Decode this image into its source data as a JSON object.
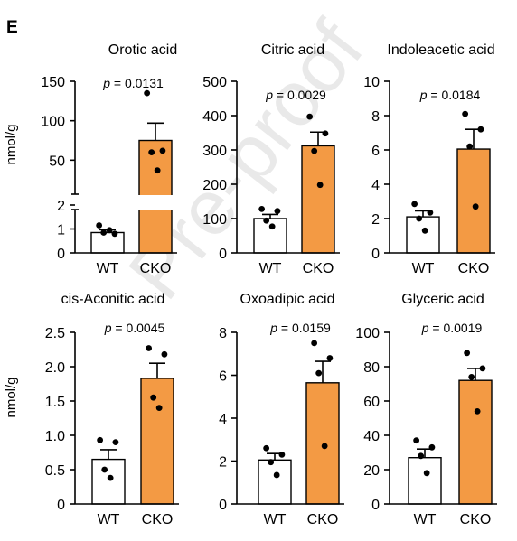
{
  "panel_label": "E",
  "watermark": "Pre-proof",
  "colors": {
    "wt_fill": "#ffffff",
    "cko_fill": "#f39a44",
    "stroke": "#000000",
    "watermark": "#e9e9e9"
  },
  "chart_data": [
    {
      "type": "bar",
      "title": "Orotic acid",
      "ylabel": "nmol/g",
      "categories": [
        "WT",
        "CKO"
      ],
      "values": [
        0.85,
        75
      ],
      "error": [
        0.12,
        22
      ],
      "points": [
        [
          1.15,
          0.8,
          0.85,
          0.95
        ],
        [
          135,
          62,
          60,
          37
        ]
      ],
      "pvalue": "p = 0.0131",
      "broken_axis": true,
      "yticks_lower": [
        "0",
        "1",
        "2"
      ],
      "yticks_upper": [
        "50",
        "100",
        "150"
      ],
      "ylim_lower": [
        0,
        2
      ],
      "ylim_upper": [
        0,
        150
      ]
    },
    {
      "type": "bar",
      "title": "Citric acid",
      "ylabel": "",
      "categories": [
        "WT",
        "CKO"
      ],
      "values": [
        100,
        312
      ],
      "error": [
        12,
        40
      ],
      "points": [
        [
          128,
          122,
          94,
          77
        ],
        [
          397,
          348,
          297,
          198
        ]
      ],
      "pvalue": "p = 0.0029",
      "yticks": [
        "0",
        "100",
        "200",
        "300",
        "400",
        "500"
      ],
      "ylim": [
        0,
        500
      ]
    },
    {
      "type": "bar",
      "title": "Indoleacetic acid",
      "ylabel": "",
      "categories": [
        "WT",
        "CKO"
      ],
      "values": [
        2.1,
        6.05
      ],
      "error": [
        0.35,
        1.15
      ],
      "points": [
        [
          2.85,
          2.35,
          2.0,
          1.3
        ],
        [
          8.1,
          7.2,
          6.2,
          2.7
        ]
      ],
      "pvalue": "p = 0.0184",
      "yticks": [
        "0",
        "2",
        "4",
        "6",
        "8",
        "10"
      ],
      "ylim": [
        0,
        10
      ]
    },
    {
      "type": "bar",
      "title": "cis-Aconitic acid",
      "ylabel": "nmol/g",
      "categories": [
        "WT",
        "CKO"
      ],
      "values": [
        0.65,
        1.83
      ],
      "error": [
        0.14,
        0.22
      ],
      "points": [
        [
          0.93,
          0.9,
          0.5,
          0.38
        ],
        [
          2.27,
          2.18,
          1.55,
          1.4
        ]
      ],
      "pvalue": "p = 0.0045",
      "yticks": [
        "0",
        "0.5",
        "1.0",
        "1.5",
        "2.0",
        "2.5"
      ],
      "ylim": [
        0,
        2.5
      ]
    },
    {
      "type": "bar",
      "title": "Oxoadipic acid",
      "ylabel": "",
      "categories": [
        "WT",
        "CKO"
      ],
      "values": [
        2.05,
        5.65
      ],
      "error": [
        0.3,
        1.0
      ],
      "points": [
        [
          2.6,
          2.3,
          1.95,
          1.35
        ],
        [
          7.5,
          6.8,
          6.1,
          2.7
        ]
      ],
      "pvalue": "p = 0.0159",
      "yticks": [
        "0",
        "2",
        "4",
        "6",
        "8"
      ],
      "ylim": [
        0,
        8
      ]
    },
    {
      "type": "bar",
      "title": "Glyceric acid",
      "ylabel": "",
      "categories": [
        "WT",
        "CKO"
      ],
      "values": [
        27,
        72
      ],
      "error": [
        5,
        7
      ],
      "points": [
        [
          37,
          33,
          28,
          18
        ],
        [
          88,
          79,
          74,
          54
        ]
      ],
      "pvalue": "p = 0.0019",
      "yticks": [
        "0",
        "20",
        "40",
        "60",
        "80",
        "100"
      ],
      "ylim": [
        0,
        100
      ]
    }
  ]
}
